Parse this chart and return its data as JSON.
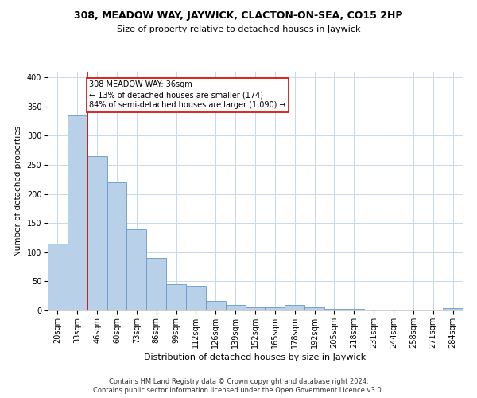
{
  "title_main": "308, MEADOW WAY, JAYWICK, CLACTON-ON-SEA, CO15 2HP",
  "title_sub": "Size of property relative to detached houses in Jaywick",
  "xlabel": "Distribution of detached houses by size in Jaywick",
  "ylabel": "Number of detached properties",
  "footer1": "Contains HM Land Registry data © Crown copyright and database right 2024.",
  "footer2": "Contains public sector information licensed under the Open Government Licence v3.0.",
  "annotation_line1": "308 MEADOW WAY: 36sqm",
  "annotation_line2": "← 13% of detached houses are smaller (174)",
  "annotation_line3": "84% of semi-detached houses are larger (1,090) →",
  "bar_color": "#b8d0e8",
  "bar_edge_color": "#6699cc",
  "red_line_color": "#dd0000",
  "categories": [
    "20sqm",
    "33sqm",
    "46sqm",
    "60sqm",
    "73sqm",
    "86sqm",
    "99sqm",
    "112sqm",
    "126sqm",
    "139sqm",
    "152sqm",
    "165sqm",
    "178sqm",
    "192sqm",
    "205sqm",
    "218sqm",
    "231sqm",
    "244sqm",
    "258sqm",
    "271sqm",
    "284sqm"
  ],
  "values": [
    115,
    335,
    265,
    220,
    140,
    90,
    45,
    42,
    17,
    9,
    6,
    6,
    9,
    6,
    3,
    3,
    0,
    0,
    0,
    0,
    4
  ],
  "red_line_x": 1.5,
  "ylim": [
    0,
    410
  ],
  "yticks": [
    0,
    50,
    100,
    150,
    200,
    250,
    300,
    350,
    400
  ],
  "bg_color": "#ffffff",
  "grid_color": "#c8d8ec",
  "title_fontsize": 9,
  "subtitle_fontsize": 8,
  "xlabel_fontsize": 8,
  "ylabel_fontsize": 7.5,
  "tick_fontsize": 7,
  "annotation_fontsize": 7,
  "footer_fontsize": 6
}
